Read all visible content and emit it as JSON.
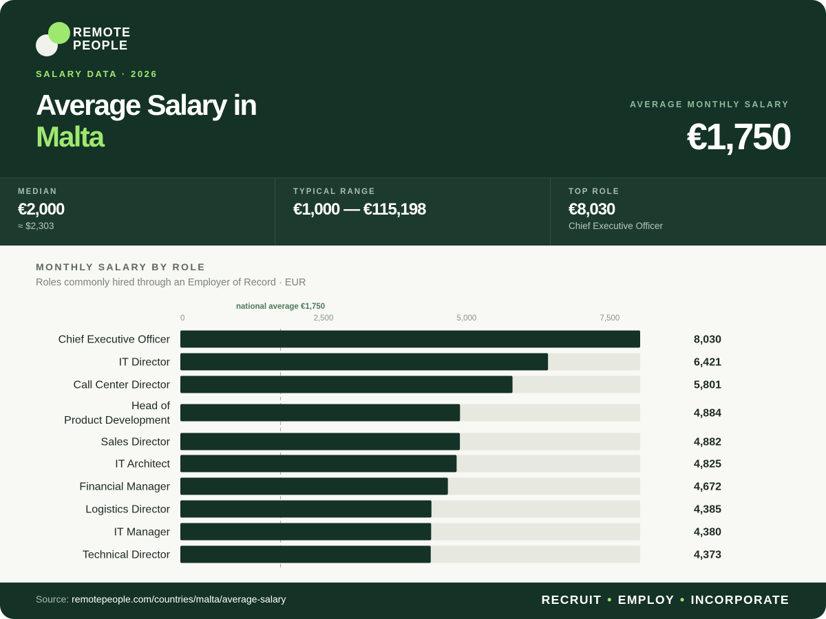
{
  "brand": {
    "line1": "REMOTE",
    "line2": "PEOPLE"
  },
  "header": {
    "eyebrow": "SALARY DATA · 2026",
    "title_line1": "Average Salary in",
    "country": "Malta",
    "hero_label": "AVERAGE MONTHLY SALARY",
    "hero_value": "€1,750"
  },
  "stats": [
    {
      "label": "MEDIAN",
      "value": "€2,000",
      "sub": "≈ $2,303"
    },
    {
      "label": "TYPICAL RANGE",
      "value": "€1,000 — €115,198",
      "sub": ""
    },
    {
      "label": "TOP ROLE",
      "value": "€8,030",
      "sub": "Chief Executive Officer"
    }
  ],
  "chart_section": {
    "title": "MONTHLY SALARY BY ROLE",
    "subtitle": "Roles commonly hired through an Employer of Record · EUR"
  },
  "chart_data": {
    "type": "bar",
    "orientation": "horizontal",
    "categories": [
      "Chief Executive Officer",
      "IT Director",
      "Call Center Director",
      "Head of Product Development",
      "Sales Director",
      "IT Architect",
      "Financial Manager",
      "Logistics Director",
      "IT Manager",
      "Technical Director"
    ],
    "values": [
      8030,
      6421,
      5801,
      4884,
      4882,
      4825,
      4672,
      4385,
      4380,
      4373
    ],
    "value_labels": [
      "8,030",
      "6,421",
      "5,801",
      "4,884",
      "4,882",
      "4,825",
      "4,672",
      "4,385",
      "4,380",
      "4,373"
    ],
    "xlim": [
      0,
      8030
    ],
    "ticks": [
      0,
      2500,
      5000,
      7500
    ],
    "tick_labels": [
      "0",
      "2,500",
      "5,000",
      "7,500"
    ],
    "reference_line": {
      "value": 1750,
      "label": "national average €1,750"
    },
    "colors": {
      "bar": "#143226",
      "track": "#e7e8df",
      "reference": "#9aa89f"
    }
  },
  "footer": {
    "source_prefix": "Source:",
    "source_url": "remotepeople.com/countries/malta/average-salary",
    "tagline": [
      "RECRUIT",
      "EMPLOY",
      "INCORPORATE"
    ]
  },
  "theme": {
    "dark_green": "#143226",
    "accent": "#9fe870"
  }
}
